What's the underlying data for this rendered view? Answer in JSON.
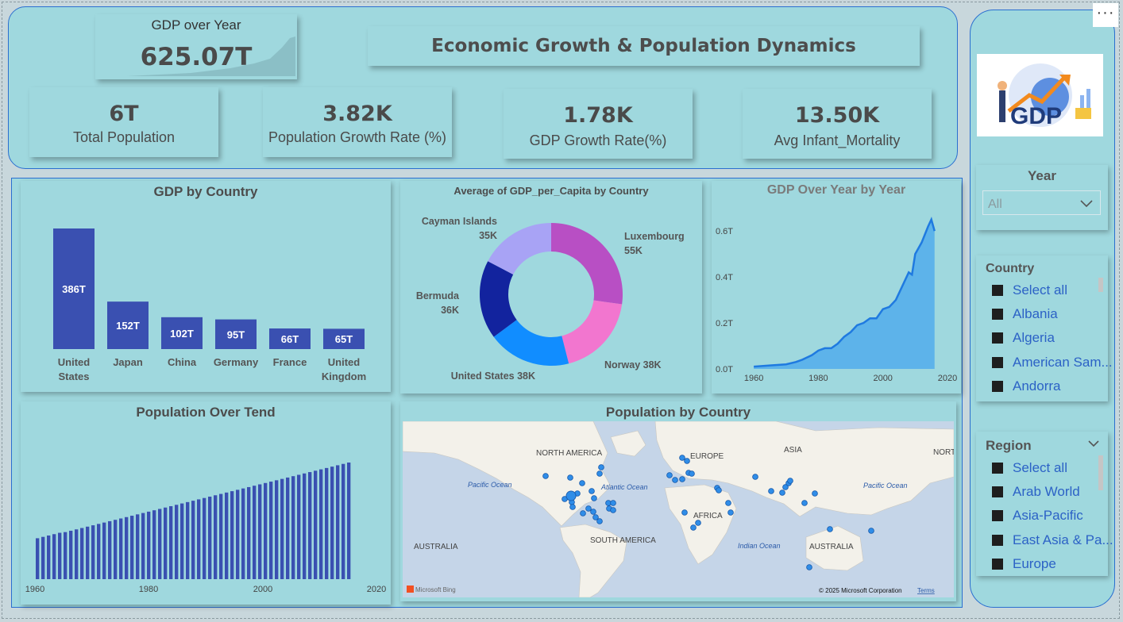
{
  "header": {
    "gdp_card": {
      "label": "GDP over Year",
      "value": "625.07T"
    },
    "title": "Economic Growth & Population Dynamics"
  },
  "kpis": [
    {
      "value": "6T",
      "label": "Total Population"
    },
    {
      "value": "3.82K",
      "label": "Population Growth Rate (%)"
    },
    {
      "value": "1.78K",
      "label": "GDP Growth Rate(%)"
    },
    {
      "value": "13.50K",
      "label": "Avg Infant_Mortality"
    }
  ],
  "visuals": {
    "gdp_by_country": {
      "title": "GDP by Country"
    },
    "donut": {
      "title": "Average of GDP_per_Capita by Country"
    },
    "gdp_over_year": {
      "title": "GDP Over Year by Year"
    },
    "population_trend": {
      "title": "Population Over Tend"
    },
    "map": {
      "title": "Population by Country",
      "labels": [
        "NORTH AMERICA",
        "EUROPE",
        "ASIA",
        "NORTI",
        "Pacific Ocean",
        "Atlantic Ocean",
        "Pacific Ocean",
        "AFRICA",
        "SOUTH AMERICA",
        "AUSTRALIA",
        "Indian Ocean",
        "AUSTRALIA"
      ],
      "bing": "Microsoft Bing",
      "copyright": "© 2025 Microsoft Corporation",
      "terms": "Terms"
    }
  },
  "slicers": {
    "year": {
      "title": "Year",
      "selected": "All"
    },
    "country": {
      "title": "Country",
      "items": [
        "Select all",
        "Albania",
        "Algeria",
        "American Sam...",
        "Andorra"
      ]
    },
    "region": {
      "title": "Region",
      "items": [
        "Select all",
        "Arab World",
        "Asia-Pacific",
        "East Asia & Pa...",
        "Europe"
      ]
    }
  },
  "logo": {
    "text": "GDP"
  },
  "more_options": "···",
  "colors": {
    "background": "#9fd8de",
    "bar": "#3a50b1",
    "accent": "#2a6fd0",
    "area": "#5db3ea",
    "line": "#1f7ae0"
  },
  "chart_data": [
    {
      "type": "bar",
      "title": "GDP by Country",
      "categories": [
        "United States",
        "Japan",
        "China",
        "Germany",
        "France",
        "United Kingdom"
      ],
      "values": [
        386,
        152,
        102,
        95,
        66,
        65
      ],
      "data_labels": [
        "386T",
        "152T",
        "102T",
        "95T",
        "66T",
        "65T"
      ],
      "unit": "T"
    },
    {
      "type": "pie",
      "title": "Average of GDP_per_Capita by Country",
      "categories": [
        "Luxembourg",
        "Norway",
        "United States",
        "Bermuda",
        "Cayman Islands"
      ],
      "values": [
        55,
        38,
        38,
        36,
        35
      ],
      "data_labels": [
        "55K",
        "38K",
        "38K",
        "36K",
        "35K"
      ],
      "colors": [
        "#b84fc4",
        "#f276cf",
        "#118dff",
        "#12239e",
        "#a8a3f5"
      ]
    },
    {
      "type": "area",
      "title": "GDP Over Year by Year",
      "x": [
        1960,
        1965,
        1970,
        1973,
        1975,
        1978,
        1980,
        1982,
        1984,
        1986,
        1988,
        1990,
        1992,
        1994,
        1996,
        1998,
        2000,
        2002,
        2004,
        2006,
        2008,
        2009,
        2010,
        2012,
        2014,
        2015,
        2016
      ],
      "values": [
        0.01,
        0.015,
        0.02,
        0.03,
        0.04,
        0.06,
        0.08,
        0.09,
        0.09,
        0.11,
        0.14,
        0.16,
        0.19,
        0.2,
        0.22,
        0.22,
        0.26,
        0.27,
        0.3,
        0.36,
        0.42,
        0.41,
        0.5,
        0.55,
        0.62,
        0.65,
        0.6
      ],
      "xticks": [
        "1960",
        "1980",
        "2000",
        "2020"
      ],
      "yticks": [
        "0.0T",
        "0.2T",
        "0.4T",
        "0.6T"
      ],
      "xlim": [
        1958,
        2020
      ],
      "ylim": [
        0,
        0.68
      ]
    },
    {
      "type": "bar",
      "title": "Population Over Tend",
      "x_start": 1960,
      "x_end": 2016,
      "values": [
        3.0,
        3.1,
        3.2,
        3.3,
        3.4,
        3.45,
        3.55,
        3.65,
        3.75,
        3.85,
        3.95,
        4.05,
        4.15,
        4.25,
        4.35,
        4.45,
        4.55,
        4.65,
        4.75,
        4.85,
        4.95,
        5.05,
        5.15,
        5.25,
        5.35,
        5.45,
        5.55,
        5.65,
        5.75,
        5.85,
        5.95,
        6.05,
        6.15,
        6.25,
        6.35,
        6.45,
        6.55,
        6.65,
        6.75,
        6.85,
        6.95,
        7.05,
        7.15,
        7.25,
        7.35,
        7.45,
        7.55,
        7.65,
        7.75,
        7.85,
        7.95,
        8.05,
        8.15,
        8.25,
        8.35,
        8.45,
        8.55
      ],
      "xticks": [
        "1960",
        "1980",
        "2000",
        "2020"
      ]
    }
  ]
}
